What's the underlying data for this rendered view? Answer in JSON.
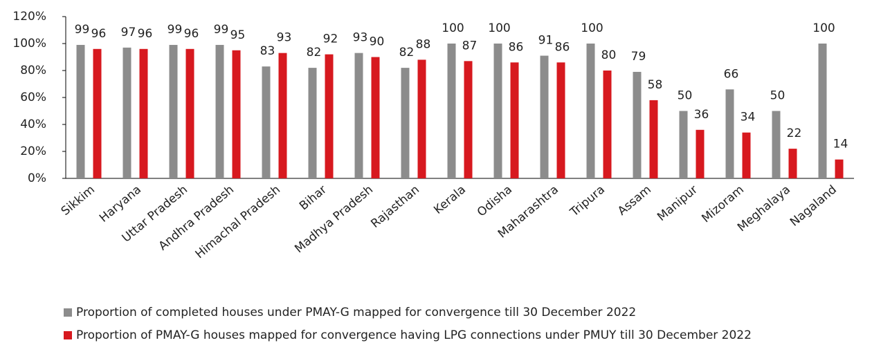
{
  "chart_data": {
    "type": "bar",
    "categories": [
      "Sikkim",
      "Haryana",
      "Uttar Pradesh",
      "Andhra Pradesh",
      "Himachal Pradesh",
      "Bihar",
      "Madhya Pradesh",
      "Rajasthan",
      "Kerala",
      "Odisha",
      "Maharashtra",
      "Tripura",
      "Assam",
      "Manipur",
      "Mizoram",
      "Meghalaya",
      "Nagaland"
    ],
    "series": [
      {
        "name": "Proportion of completed houses under PMAY-G  mapped for convergence till 30 December 2022",
        "color": "#8c8c8c",
        "values": [
          99,
          97,
          99,
          99,
          83,
          82,
          93,
          82,
          100,
          100,
          91,
          100,
          79,
          50,
          66,
          50,
          100
        ]
      },
      {
        "name": "Proportion of PMAY-G houses mapped for convergence having LPG connections under PMUY till 30 December 2022",
        "color": "#d7191f",
        "values": [
          96,
          96,
          96,
          95,
          93,
          92,
          90,
          88,
          87,
          86,
          86,
          80,
          58,
          36,
          34,
          22,
          14
        ]
      }
    ],
    "ylim": [
      0,
      120
    ],
    "yticks": [
      {
        "value": 0,
        "label": "0%"
      },
      {
        "value": 20,
        "label": "20%"
      },
      {
        "value": 40,
        "label": "40%"
      },
      {
        "value": 60,
        "label": "60%"
      },
      {
        "value": 80,
        "label": "80%"
      },
      {
        "value": 100,
        "label": "100%"
      },
      {
        "value": 120,
        "label": "120%"
      }
    ],
    "grid": false
  }
}
